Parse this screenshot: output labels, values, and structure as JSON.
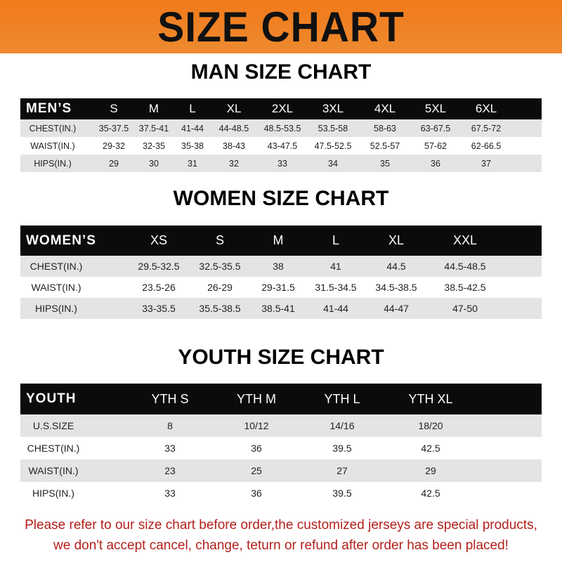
{
  "banner_title": "SIZE CHART",
  "men": {
    "title": "MAN SIZE CHART",
    "header": [
      "MEN’S",
      "S",
      "M",
      "L",
      "XL",
      "2XL",
      "3XL",
      "4XL",
      "5XL",
      "6XL"
    ],
    "rows": [
      [
        "CHEST(IN.)",
        "35-37.5",
        "37.5-41",
        "41-44",
        "44-48.5",
        "48.5-53.5",
        "53.5-58",
        "58-63",
        "63-67.5",
        "67.5-72"
      ],
      [
        "WAIST(IN.)",
        "29-32",
        "32-35",
        "35-38",
        "38-43",
        "43-47.5",
        "47.5-52.5",
        "52.5-57",
        "57-62",
        "62-66.5"
      ],
      [
        "HIPS(IN.)",
        "29",
        "30",
        "31",
        "32",
        "33",
        "34",
        "35",
        "36",
        "37"
      ]
    ]
  },
  "women": {
    "title": "WOMEN SIZE CHART",
    "header": [
      "WOMEN’S",
      "XS",
      "S",
      "M",
      "L",
      "XL",
      "XXL"
    ],
    "rows": [
      [
        "CHEST(IN.)",
        "29.5-32.5",
        "32.5-35.5",
        "38",
        "41",
        "44.5",
        "44.5-48.5"
      ],
      [
        "WAIST(IN.)",
        "23.5-26",
        "26-29",
        "29-31.5",
        "31.5-34.5",
        "34.5-38.5",
        "38.5-42.5"
      ],
      [
        "HIPS(IN.)",
        "33-35.5",
        "35.5-38.5",
        "38.5-41",
        "41-44",
        "44-47",
        "47-50"
      ]
    ]
  },
  "youth": {
    "title": "YOUTH SIZE CHART",
    "header": [
      "YOUTH",
      "YTH S",
      "YTH M",
      "YTH L",
      "YTH XL"
    ],
    "rows": [
      [
        "U.S.SIZE",
        "8",
        "10/12",
        "14/16",
        "18/20"
      ],
      [
        "CHEST(IN.)",
        "33",
        "36",
        "39.5",
        "42.5"
      ],
      [
        "WAIST(IN.)",
        "23",
        "25",
        "27",
        "29"
      ],
      [
        "HIPS(IN.)",
        "33",
        "36",
        "39.5",
        "42.5"
      ]
    ]
  },
  "footer": {
    "line1": "Please refer to our size chart before order,the customized jerseys are special products,",
    "line2": "we don't accept cancel, change, teturn or refund after order has been placed!"
  },
  "colors": {
    "banner": "#f07a1a",
    "header_row": "#0c0a0a",
    "stripe": "#e4e4e4",
    "footer_text": "#b3201d"
  }
}
